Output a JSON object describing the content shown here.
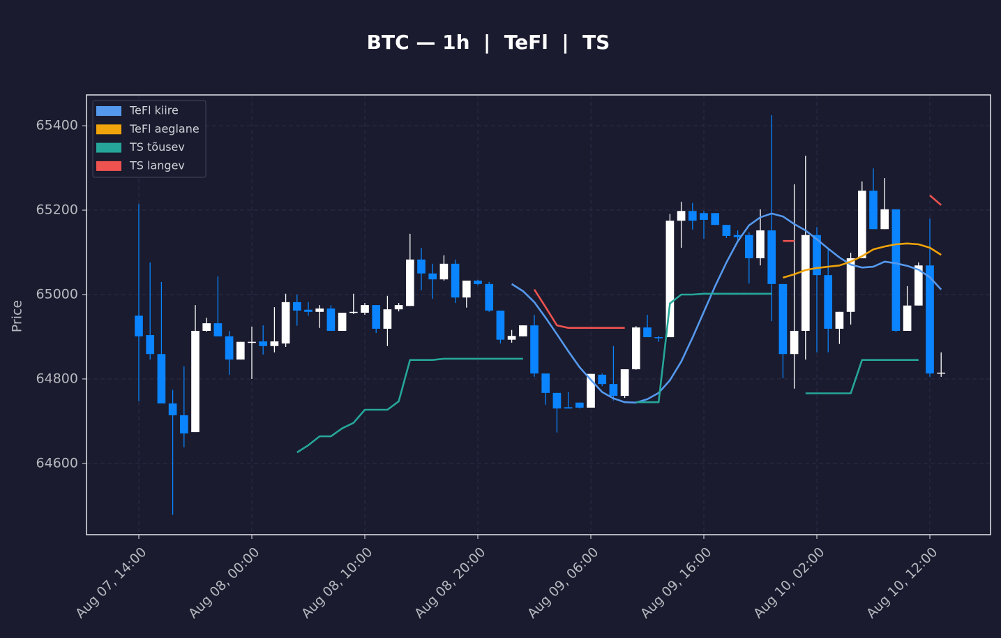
{
  "chart_data": {
    "type": "candlestick",
    "title": "BTC — 1h  |  TeFl  |  TS",
    "y_label": "Price",
    "x": [
      "Aug 07, 14:00",
      "Aug 07, 15:00",
      "Aug 07, 16:00",
      "Aug 07, 17:00",
      "Aug 07, 18:00",
      "Aug 07, 19:00",
      "Aug 07, 20:00",
      "Aug 07, 21:00",
      "Aug 07, 22:00",
      "Aug 07, 23:00",
      "Aug 08, 00:00",
      "Aug 08, 01:00",
      "Aug 08, 02:00",
      "Aug 08, 03:00",
      "Aug 08, 04:00",
      "Aug 08, 05:00",
      "Aug 08, 06:00",
      "Aug 08, 07:00",
      "Aug 08, 08:00",
      "Aug 08, 09:00",
      "Aug 08, 10:00",
      "Aug 08, 11:00",
      "Aug 08, 12:00",
      "Aug 08, 13:00",
      "Aug 08, 14:00",
      "Aug 08, 15:00",
      "Aug 08, 16:00",
      "Aug 08, 17:00",
      "Aug 08, 18:00",
      "Aug 08, 19:00",
      "Aug 08, 20:00",
      "Aug 08, 21:00",
      "Aug 08, 22:00",
      "Aug 08, 23:00",
      "Aug 09, 00:00",
      "Aug 09, 01:00",
      "Aug 09, 02:00",
      "Aug 09, 03:00",
      "Aug 09, 04:00",
      "Aug 09, 05:00",
      "Aug 09, 06:00",
      "Aug 09, 07:00",
      "Aug 09, 08:00",
      "Aug 09, 09:00",
      "Aug 09, 10:00",
      "Aug 09, 11:00",
      "Aug 09, 12:00",
      "Aug 09, 13:00",
      "Aug 09, 14:00",
      "Aug 09, 15:00",
      "Aug 09, 16:00",
      "Aug 09, 17:00",
      "Aug 09, 18:00",
      "Aug 09, 19:00",
      "Aug 09, 20:00",
      "Aug 09, 21:00",
      "Aug 09, 22:00",
      "Aug 09, 23:00",
      "Aug 10, 00:00",
      "Aug 10, 01:00",
      "Aug 10, 02:00",
      "Aug 10, 03:00",
      "Aug 10, 04:00",
      "Aug 10, 05:00",
      "Aug 10, 06:00",
      "Aug 10, 07:00",
      "Aug 10, 08:00",
      "Aug 10, 09:00",
      "Aug 10, 10:00",
      "Aug 10, 11:00",
      "Aug 10, 12:00",
      "Aug 10, 13:00"
    ],
    "open": [
      64950,
      64904,
      64859,
      64742,
      64714,
      64674,
      64914,
      64932,
      64901,
      64846,
      64886,
      64889,
      64878,
      64884,
      64982,
      64964,
      64959,
      64967,
      64914,
      64957,
      64957,
      64975,
      64919,
      64965,
      64973,
      65083,
      65050,
      65036,
      65073,
      64993,
      65033,
      65025,
      64962,
      64893,
      64901,
      64927,
      64813,
      64767,
      64733,
      64744,
      64732,
      64810,
      64788,
      64760,
      64823,
      64922,
      64899,
      64899,
      65175,
      65198,
      65193,
      65193,
      65165,
      65141,
      65141,
      65086,
      65152,
      65025,
      64859,
      64914,
      65141,
      65046,
      64919,
      64959,
      65086,
      65246,
      65155,
      65202,
      64914,
      64974,
      65069,
      64813
    ],
    "high": [
      65215,
      65076,
      65030,
      64774,
      64830,
      64975,
      64945,
      65043,
      64914,
      64888,
      64924,
      64927,
      64970,
      65002,
      65000,
      64982,
      64975,
      64975,
      64957,
      65002,
      64980,
      64975,
      64997,
      64980,
      65144,
      65111,
      65073,
      65093,
      65083,
      65033,
      65035,
      65030,
      64962,
      64916,
      64927,
      64952,
      64813,
      64767,
      64769,
      64744,
      64812,
      64813,
      64878,
      64823,
      64925,
      64952,
      64902,
      65191,
      65220,
      65217,
      65198,
      65193,
      65165,
      65152,
      65147,
      65202,
      65425,
      65025,
      65261,
      65329,
      65160,
      65111,
      64959,
      65099,
      65268,
      65299,
      65276,
      65202,
      65020,
      65076,
      65180,
      64863
    ],
    "low": [
      64747,
      64846,
      64742,
      64478,
      64638,
      64674,
      64912,
      64901,
      64810,
      64846,
      64800,
      64858,
      64863,
      64876,
      64926,
      64950,
      64921,
      64914,
      64914,
      64954,
      64952,
      64909,
      64878,
      64960,
      64973,
      65010,
      64990,
      65033,
      64980,
      64969,
      65022,
      64959,
      64884,
      64886,
      64901,
      64805,
      64739,
      64673,
      64730,
      64730,
      64732,
      64783,
      64749,
      64755,
      64822,
      64899,
      64888,
      64899,
      65111,
      65154,
      65132,
      65165,
      65134,
      65126,
      65026,
      65069,
      64937,
      64802,
      64777,
      64846,
      64863,
      64863,
      64883,
      64929,
      65086,
      65155,
      65155,
      64911,
      64914,
      64974,
      64805,
      64805
    ],
    "close": [
      64901,
      64859,
      64742,
      64714,
      64671,
      64914,
      64932,
      64901,
      64846,
      64888,
      64888,
      64878,
      64889,
      64982,
      64962,
      64959,
      64967,
      64914,
      64957,
      64959,
      64975,
      64919,
      64965,
      64975,
      65083,
      65050,
      65036,
      65073,
      64993,
      65033,
      65025,
      64962,
      64893,
      64902,
      64927,
      64813,
      64767,
      64730,
      64730,
      64732,
      64812,
      64788,
      64760,
      64823,
      64922,
      64899,
      64898,
      65175,
      65198,
      65175,
      65177,
      65165,
      65139,
      65136,
      65086,
      65152,
      65025,
      64859,
      64914,
      65141,
      65046,
      64919,
      64959,
      65086,
      65246,
      65155,
      65202,
      64914,
      64974,
      65069,
      64813,
      64815
    ],
    "up_color": "#ffffff",
    "down_color": "#0a84ff",
    "series": [
      {
        "name": "TeFl kiire",
        "color": "#5599ee",
        "values": [
          null,
          null,
          null,
          null,
          null,
          null,
          null,
          null,
          null,
          null,
          null,
          null,
          null,
          null,
          null,
          null,
          null,
          null,
          null,
          null,
          null,
          null,
          null,
          null,
          null,
          null,
          null,
          null,
          null,
          null,
          null,
          null,
          null,
          65025,
          65008,
          64982,
          64945,
          64906,
          64866,
          64828,
          64798,
          64769,
          64754,
          64745,
          64744,
          64752,
          64767,
          64797,
          64841,
          64898,
          64959,
          65020,
          65076,
          65126,
          65164,
          65183,
          65192,
          65185,
          65167,
          65152,
          65131,
          65109,
          65088,
          65071,
          65064,
          65066,
          65078,
          65074,
          65068,
          65059,
          65041,
          65012
        ]
      },
      {
        "name": "TeFl aeglane",
        "color": "#f0a30a",
        "values": [
          null,
          null,
          null,
          null,
          null,
          null,
          null,
          null,
          null,
          null,
          null,
          null,
          null,
          null,
          null,
          null,
          null,
          null,
          null,
          null,
          null,
          null,
          null,
          null,
          null,
          null,
          null,
          null,
          null,
          null,
          null,
          null,
          null,
          null,
          null,
          null,
          null,
          null,
          null,
          null,
          null,
          null,
          null,
          null,
          null,
          null,
          null,
          null,
          null,
          null,
          null,
          null,
          null,
          null,
          null,
          null,
          null,
          65040,
          65048,
          65058,
          65063,
          65066,
          65069,
          65078,
          65091,
          65107,
          65114,
          65119,
          65121,
          65119,
          65111,
          65094
        ]
      },
      {
        "name": "TS tõusev",
        "color": "#26a69a",
        "values": [
          null,
          null,
          null,
          null,
          null,
          null,
          null,
          null,
          null,
          null,
          null,
          null,
          null,
          null,
          64626,
          64643,
          64664,
          64664,
          64683,
          64696,
          64727,
          64727,
          64727,
          64747,
          64845,
          64845,
          64845,
          64848,
          64848,
          64848,
          64848,
          64848,
          64848,
          64848,
          64848,
          null,
          null,
          null,
          null,
          null,
          null,
          null,
          null,
          null,
          64745,
          64745,
          64745,
          64979,
          65000,
          65000,
          65002,
          65002,
          65002,
          65002,
          65002,
          65002,
          65002,
          null,
          null,
          64766,
          64766,
          64766,
          64766,
          64766,
          64845,
          64845,
          64845,
          64845,
          64845,
          64845,
          null,
          null
        ]
      },
      {
        "name": "TS langev",
        "color": "#ef5350",
        "values": [
          null,
          null,
          null,
          null,
          null,
          null,
          null,
          null,
          null,
          null,
          null,
          null,
          null,
          null,
          null,
          null,
          null,
          null,
          null,
          null,
          null,
          null,
          null,
          null,
          null,
          null,
          null,
          null,
          null,
          null,
          null,
          null,
          null,
          null,
          null,
          65012,
          64970,
          64927,
          64921,
          64921,
          64921,
          64921,
          64921,
          64921,
          null,
          null,
          null,
          null,
          null,
          null,
          null,
          null,
          null,
          null,
          null,
          null,
          null,
          65127,
          65127,
          null,
          null,
          null,
          null,
          null,
          null,
          null,
          null,
          null,
          null,
          null,
          65235,
          65212
        ]
      }
    ],
    "ylim": [
      64431,
      65473
    ],
    "yticks": [
      64600,
      64800,
      65000,
      65200,
      65400
    ],
    "xticks": [
      "Aug 07, 14:00",
      "Aug 08, 00:00",
      "Aug 08, 10:00",
      "Aug 08, 20:00",
      "Aug 09, 06:00",
      "Aug 09, 16:00",
      "Aug 10, 02:00",
      "Aug 10, 12:00"
    ],
    "grid": true,
    "legend": "upper left"
  }
}
